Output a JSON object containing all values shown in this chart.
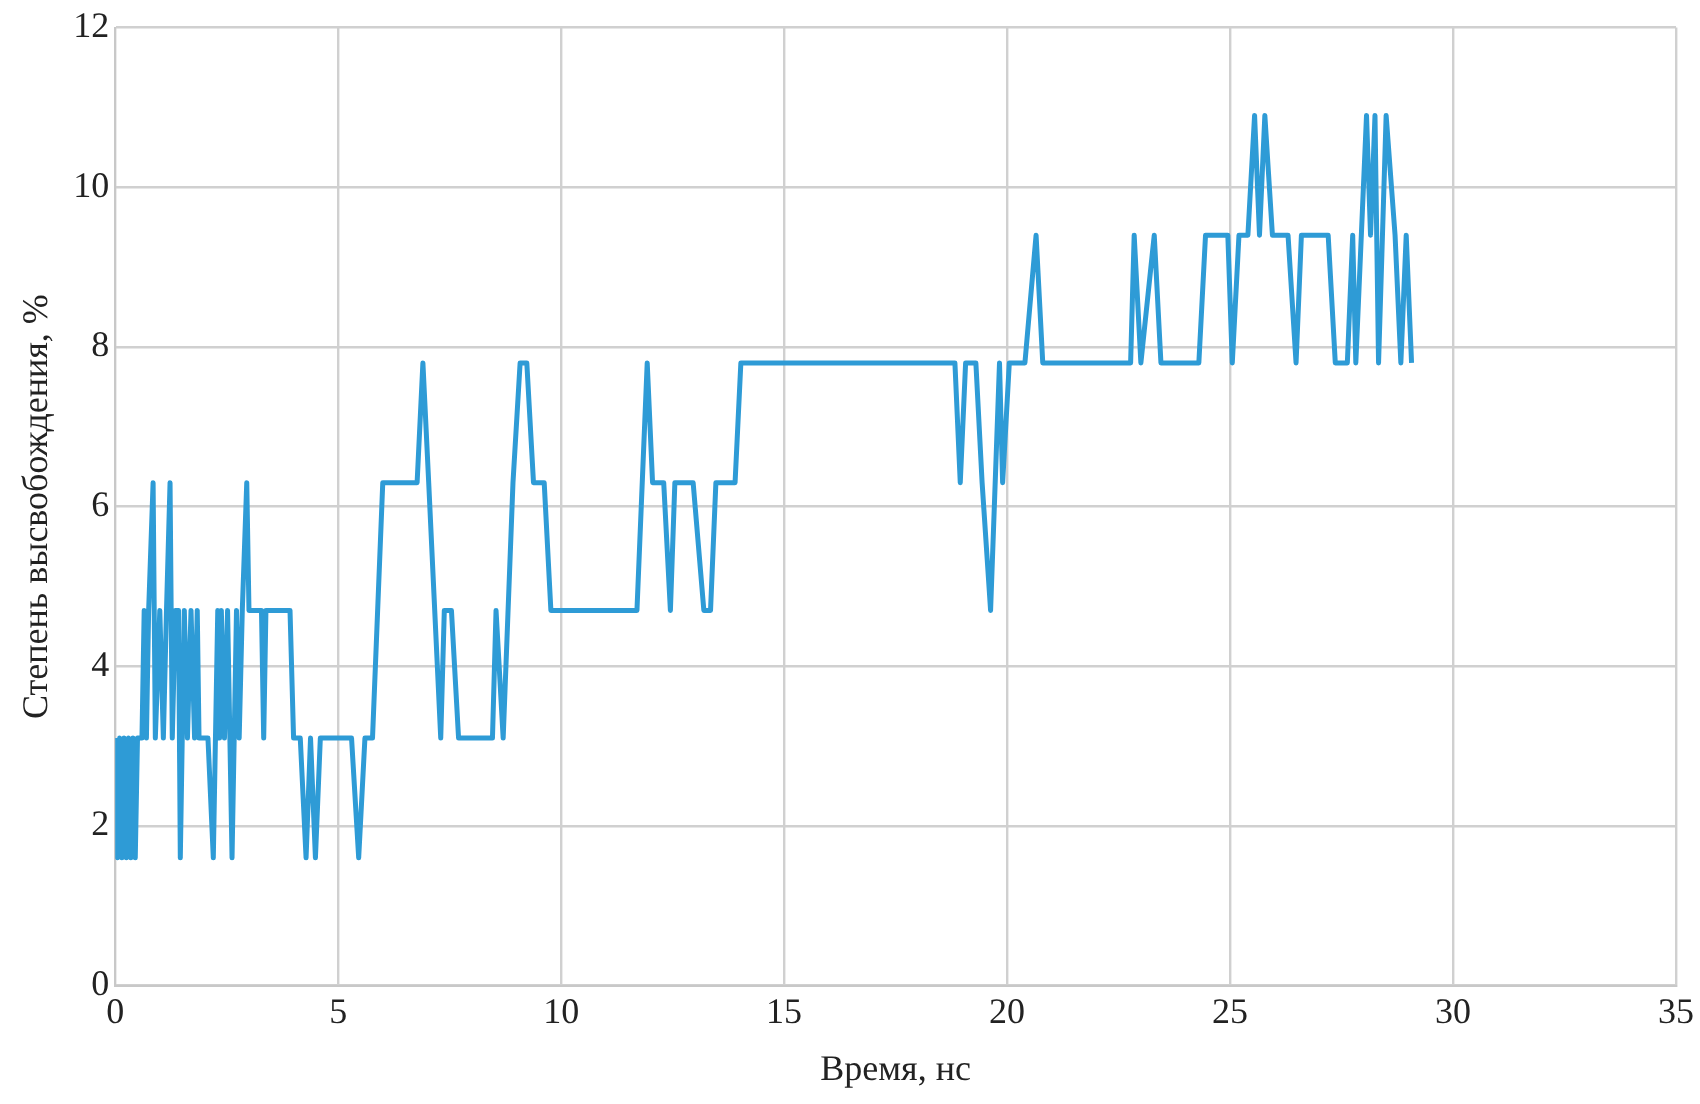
{
  "chart_data": {
    "type": "line",
    "xlabel": "Время, нс",
    "ylabel": "Степень высвобождения, %",
    "xlim": [
      0,
      35
    ],
    "xticks": [
      0,
      5,
      10,
      15,
      20,
      25,
      30,
      35
    ],
    "ylim": [
      0,
      12
    ],
    "yticks": [
      0,
      2,
      4,
      6,
      8,
      10,
      12
    ],
    "grid": true,
    "legend": false,
    "marker": "none",
    "line_style": "solid",
    "series": [
      {
        "color": "#2e9bd6",
        "x": [
          0,
          0.05,
          0.1,
          0.15,
          0.2,
          0.25,
          0.3,
          0.35,
          0.4,
          0.45,
          0.5,
          0.6,
          0.65,
          0.7,
          0.75,
          0.85,
          0.9,
          1.0,
          1.08,
          1.15,
          1.23,
          1.28,
          1.35,
          1.42,
          1.46,
          1.55,
          1.62,
          1.7,
          1.78,
          1.84,
          1.88,
          2.08,
          2.2,
          2.3,
          2.34,
          2.38,
          2.45,
          2.52,
          2.62,
          2.72,
          2.78,
          2.85,
          2.95,
          3.0,
          3.28,
          3.33,
          3.38,
          3.92,
          4.0,
          4.15,
          4.28,
          4.38,
          4.49,
          4.6,
          5.3,
          5.46,
          5.6,
          5.77,
          6.0,
          6.77,
          6.9,
          7.03,
          7.3,
          7.38,
          7.54,
          7.7,
          8.46,
          8.54,
          8.7,
          8.92,
          9.08,
          9.23,
          9.38,
          9.62,
          9.77,
          11.7,
          11.93,
          12.05,
          12.3,
          12.45,
          12.55,
          12.96,
          13.2,
          13.35,
          13.47,
          13.9,
          14.03,
          18.83,
          18.95,
          19.07,
          19.3,
          19.44,
          19.63,
          19.83,
          19.9,
          20.05,
          20.4,
          20.65,
          20.8,
          22.77,
          22.85,
          23.0,
          23.3,
          23.45,
          24.3,
          24.45,
          24.95,
          25.05,
          25.2,
          25.4,
          25.55,
          25.66,
          25.78,
          25.95,
          26.3,
          26.48,
          26.6,
          27.2,
          27.36,
          27.63,
          27.75,
          27.82,
          28.06,
          28.15,
          28.25,
          28.33,
          28.5,
          28.7,
          28.83,
          28.95,
          29.07
        ],
        "values": [
          3.1,
          1.6,
          3.1,
          1.6,
          3.1,
          1.6,
          3.1,
          1.6,
          3.1,
          1.6,
          3.1,
          3.1,
          4.7,
          3.1,
          4.7,
          6.3,
          3.1,
          4.7,
          3.1,
          4.7,
          6.3,
          3.1,
          4.7,
          4.7,
          1.6,
          4.7,
          3.1,
          4.7,
          3.1,
          4.7,
          3.1,
          3.1,
          1.6,
          4.7,
          3.1,
          4.7,
          3.1,
          4.7,
          1.6,
          4.7,
          3.1,
          4.7,
          6.3,
          4.7,
          4.7,
          3.1,
          4.7,
          4.7,
          3.1,
          3.1,
          1.6,
          3.1,
          1.6,
          3.1,
          3.1,
          1.6,
          3.1,
          3.1,
          6.3,
          6.3,
          7.8,
          6.3,
          3.1,
          4.7,
          4.7,
          3.1,
          3.1,
          4.7,
          3.1,
          6.3,
          7.8,
          7.8,
          6.3,
          6.3,
          4.7,
          4.7,
          7.8,
          6.3,
          6.3,
          4.7,
          6.3,
          6.3,
          4.7,
          4.7,
          6.3,
          6.3,
          7.8,
          7.8,
          6.3,
          7.8,
          7.8,
          6.3,
          4.7,
          7.8,
          6.3,
          7.8,
          7.8,
          9.4,
          7.8,
          7.8,
          9.4,
          7.8,
          9.4,
          7.8,
          7.8,
          9.4,
          9.4,
          7.8,
          9.4,
          9.4,
          10.9,
          9.4,
          10.9,
          9.4,
          9.4,
          7.8,
          9.4,
          9.4,
          7.8,
          7.8,
          9.4,
          7.8,
          10.9,
          9.4,
          10.9,
          7.8,
          10.9,
          9.4,
          7.8,
          9.4,
          7.8
        ]
      }
    ]
  }
}
